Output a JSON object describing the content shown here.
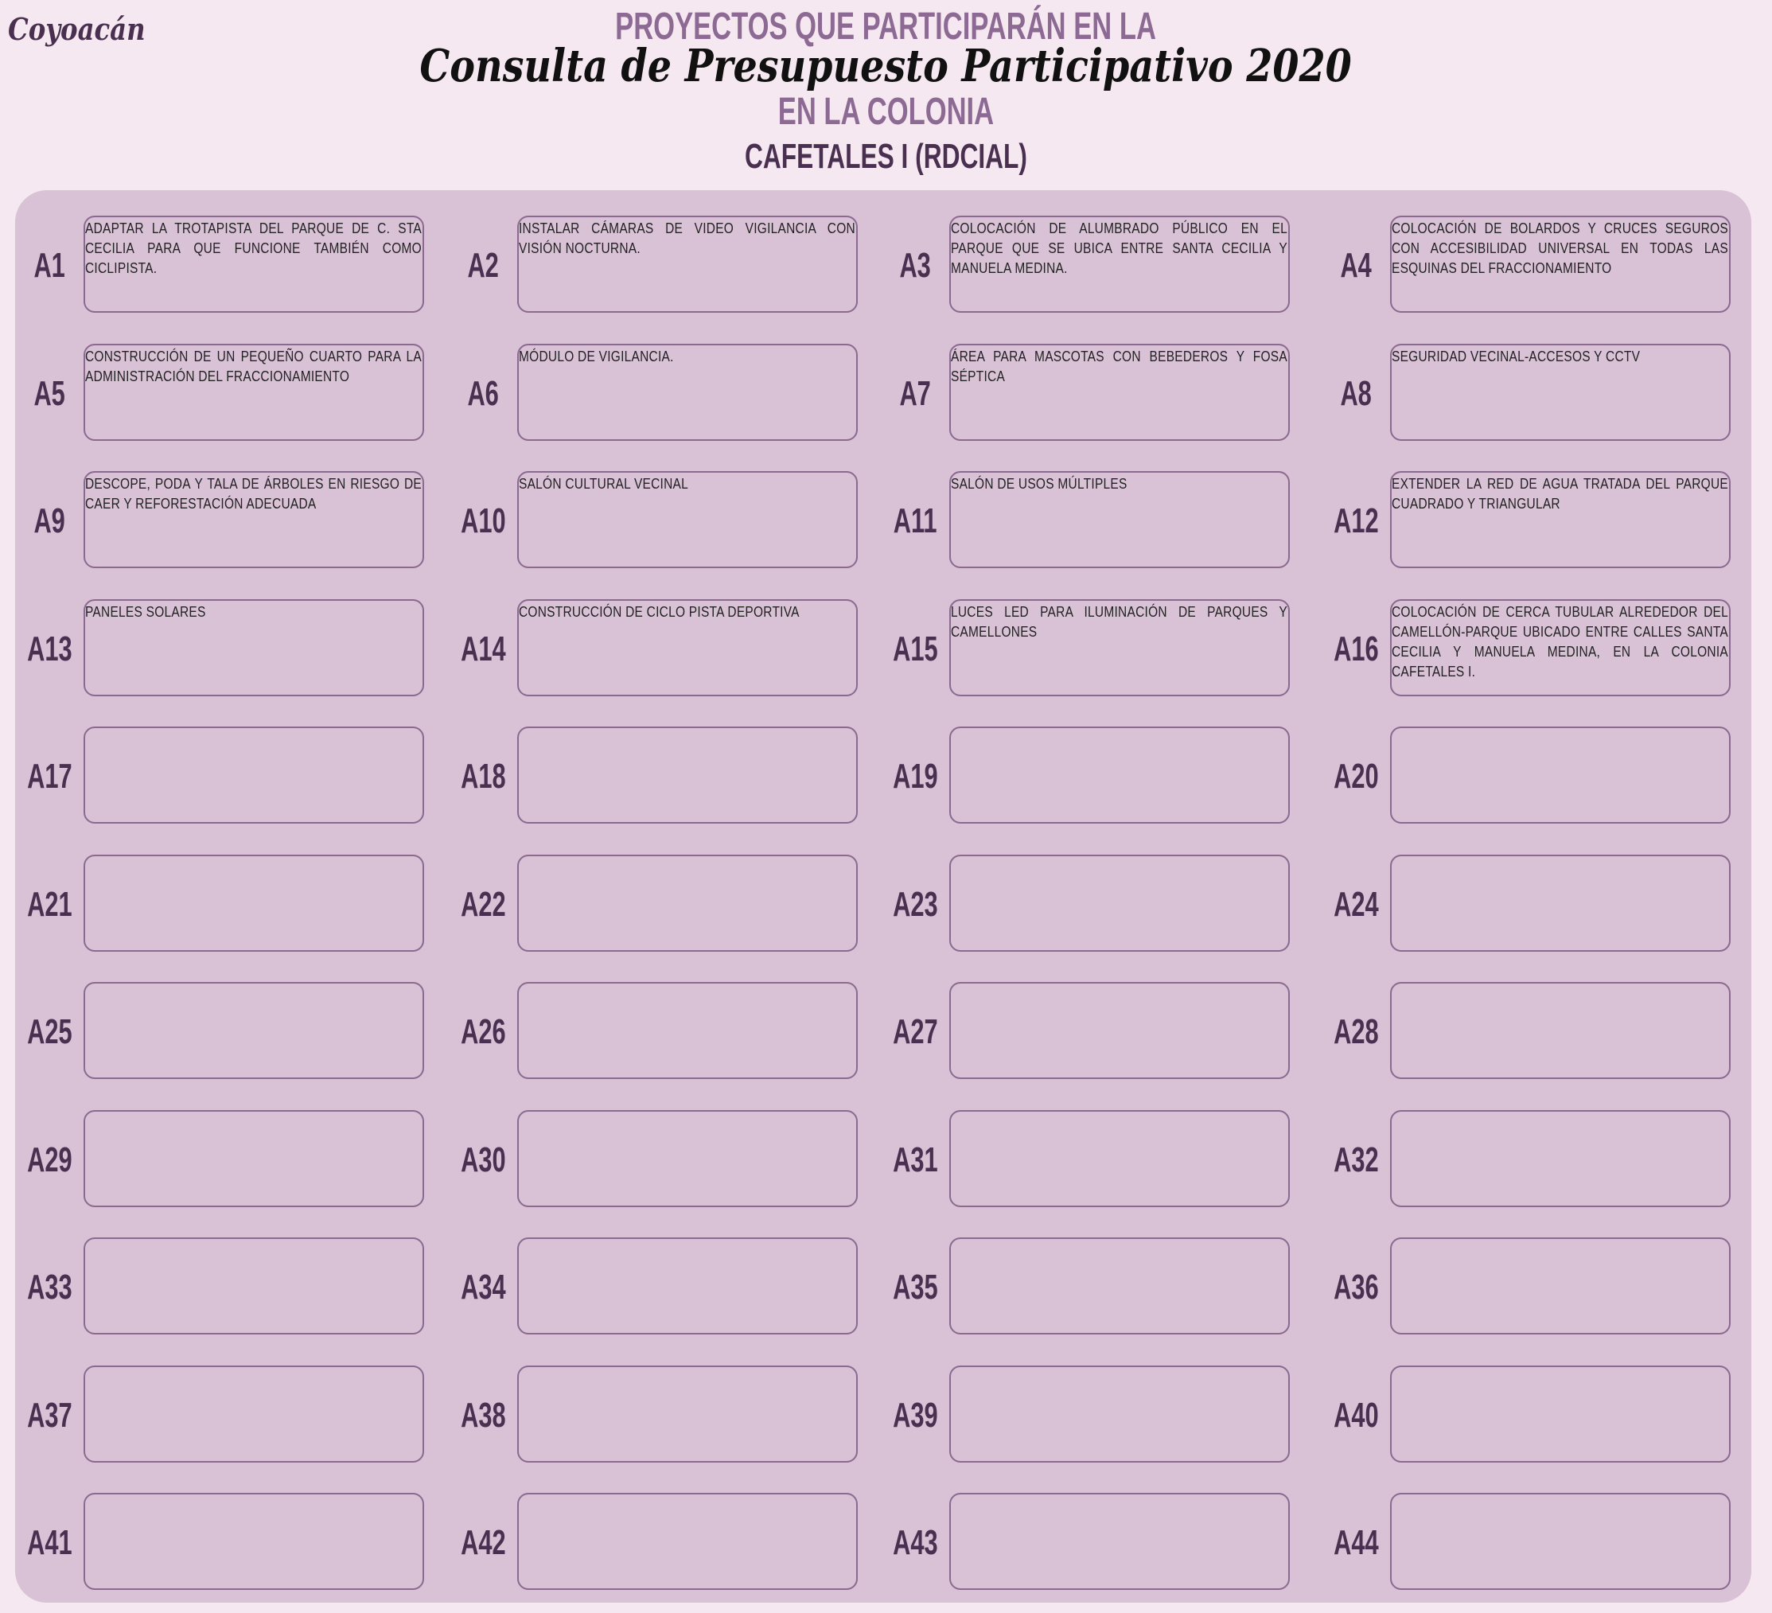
{
  "logo": "Coyoacán",
  "header": {
    "line1": "PROYECTOS QUE PARTICIPARÁN EN LA",
    "line2": "Consulta de Presupuesto Participativo 2020",
    "line3": "EN LA COLONIA",
    "colonia": "CAFETALES I (RDCIAL)"
  },
  "projects": [
    {
      "id": "A1",
      "text": "ADAPTAR LA TROTAPISTA DEL PARQUE DE C. STA CECILIA PARA QUE FUNCIONE TAMBIÉN COMO CICLIPISTA."
    },
    {
      "id": "A2",
      "text": "INSTALAR CÁMARAS DE VIDEO VIGILANCIA CON VISIÓN NOCTURNA."
    },
    {
      "id": "A3",
      "text": "COLOCACIÓN DE ALUMBRADO PÚBLICO EN EL PARQUE QUE SE UBICA ENTRE SANTA CECILIA Y MANUELA MEDINA."
    },
    {
      "id": "A4",
      "text": "COLOCACIÓN DE BOLARDOS Y CRUCES SEGUROS CON ACCESIBILIDAD UNIVERSAL EN TODAS LAS ESQUINAS DEL FRACCIONAMIENTO"
    },
    {
      "id": "A5",
      "text": "CONSTRUCCIÓN DE UN PEQUEÑO CUARTO PARA LA ADMINISTRACIÓN DEL FRACCIONAMIENTO"
    },
    {
      "id": "A6",
      "text": "MÓDULO DE VIGILANCIA."
    },
    {
      "id": "A7",
      "text": "ÁREA PARA MASCOTAS CON BEBEDEROS Y FOSA SÉPTICA"
    },
    {
      "id": "A8",
      "text": "SEGURIDAD VECINAL-ACCESOS Y CCTV"
    },
    {
      "id": "A9",
      "text": "DESCOPE, PODA Y TALA DE ÁRBOLES EN RIESGO DE CAER Y REFORESTACIÓN ADECUADA"
    },
    {
      "id": "A10",
      "text": "SALÓN CULTURAL VECINAL"
    },
    {
      "id": "A11",
      "text": "SALÓN DE USOS MÚLTIPLES"
    },
    {
      "id": "A12",
      "text": "EXTENDER LA RED DE AGUA TRATADA DEL PARQUE CUADRADO Y TRIANGULAR"
    },
    {
      "id": "A13",
      "text": "PANELES SOLARES"
    },
    {
      "id": "A14",
      "text": "CONSTRUCCIÓN DE CICLO PISTA DEPORTIVA"
    },
    {
      "id": "A15",
      "text": "LUCES LED PARA ILUMINACIÓN DE PARQUES Y CAMELLONES"
    },
    {
      "id": "A16",
      "text": "COLOCACIÓN DE CERCA TUBULAR ALREDEDOR DEL CAMELLÓN-PARQUE UBICADO ENTRE CALLES SANTA CECILIA Y MANUELA MEDINA, EN LA COLONIA CAFETALES I."
    },
    {
      "id": "A17",
      "text": ""
    },
    {
      "id": "A18",
      "text": ""
    },
    {
      "id": "A19",
      "text": ""
    },
    {
      "id": "A20",
      "text": ""
    },
    {
      "id": "A21",
      "text": ""
    },
    {
      "id": "A22",
      "text": ""
    },
    {
      "id": "A23",
      "text": ""
    },
    {
      "id": "A24",
      "text": ""
    },
    {
      "id": "A25",
      "text": ""
    },
    {
      "id": "A26",
      "text": ""
    },
    {
      "id": "A27",
      "text": ""
    },
    {
      "id": "A28",
      "text": ""
    },
    {
      "id": "A29",
      "text": ""
    },
    {
      "id": "A30",
      "text": ""
    },
    {
      "id": "A31",
      "text": ""
    },
    {
      "id": "A32",
      "text": ""
    },
    {
      "id": "A33",
      "text": ""
    },
    {
      "id": "A34",
      "text": ""
    },
    {
      "id": "A35",
      "text": ""
    },
    {
      "id": "A36",
      "text": ""
    },
    {
      "id": "A37",
      "text": ""
    },
    {
      "id": "A38",
      "text": ""
    },
    {
      "id": "A39",
      "text": ""
    },
    {
      "id": "A40",
      "text": ""
    },
    {
      "id": "A41",
      "text": ""
    },
    {
      "id": "A42",
      "text": ""
    },
    {
      "id": "A43",
      "text": ""
    },
    {
      "id": "A44",
      "text": ""
    }
  ]
}
